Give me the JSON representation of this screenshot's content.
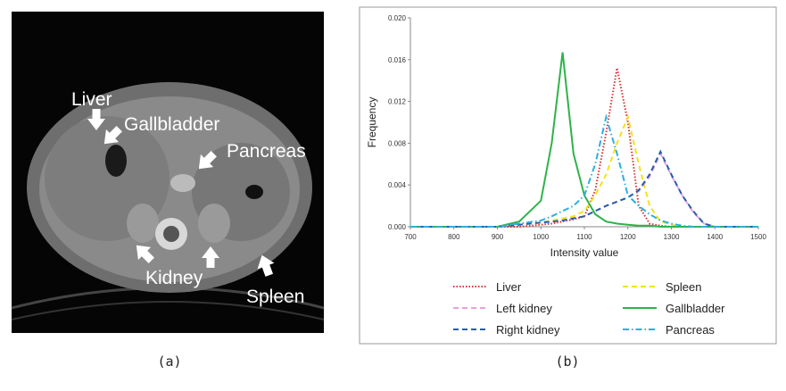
{
  "image": {
    "labels": [
      "Liver",
      "Gallbladder",
      "Pancreas",
      "Kidney",
      "Spleen"
    ]
  },
  "captions": [
    "(a)",
    "(b)"
  ],
  "chart_data": {
    "type": "line",
    "xlabel": "Intensity value",
    "ylabel": "Frequency",
    "x": [
      700,
      900,
      950,
      1000,
      1025,
      1050,
      1075,
      1100,
      1125,
      1150,
      1175,
      1200,
      1225,
      1250,
      1275,
      1300,
      1325,
      1350,
      1375,
      1400,
      1500
    ],
    "xlim": [
      700,
      1500
    ],
    "xticks": [
      700,
      800,
      900,
      1000,
      1100,
      1200,
      1300,
      1400,
      1500
    ],
    "ylim": [
      0,
      0.02
    ],
    "yticks": [
      {
        "value": 0,
        "label": "0.000"
      },
      {
        "value": 0.004,
        "label": "0.004"
      },
      {
        "value": 0.008,
        "label": "0.008"
      },
      {
        "value": 0.012,
        "label": "0.012"
      },
      {
        "value": 0.016,
        "label": "0.016"
      },
      {
        "value": 0.02,
        "label": "0.020"
      }
    ],
    "series": [
      {
        "name": "Liver",
        "color": "#d93030",
        "line_style": "dotted",
        "values": [
          0,
          0,
          0,
          0.0002,
          0.0003,
          0.0005,
          0.0007,
          0.001,
          0.0035,
          0.009,
          0.0152,
          0.01,
          0.002,
          0.0003,
          0.0001,
          0,
          0,
          0,
          0,
          0,
          0
        ]
      },
      {
        "name": "Spleen",
        "color": "#f2e21c",
        "line_style": "dashed",
        "values": [
          0,
          0,
          0.0002,
          0.0004,
          0.0006,
          0.0008,
          0.001,
          0.0015,
          0.003,
          0.005,
          0.008,
          0.0105,
          0.006,
          0.002,
          0.0005,
          0.0002,
          0,
          0,
          0,
          0,
          0
        ]
      },
      {
        "name": "Left kidney",
        "color": "#e8a0e0",
        "line_style": "dashed",
        "values": [
          0,
          0,
          0.0002,
          0.0004,
          0.0005,
          0.0006,
          0.0008,
          0.001,
          0.0015,
          0.002,
          0.0024,
          0.0028,
          0.0034,
          0.0048,
          0.007,
          0.0049,
          0.003,
          0.0014,
          0.0003,
          0,
          0
        ]
      },
      {
        "name": "Gallbladder",
        "color": "#2db34a",
        "line_style": "solid",
        "values": [
          0,
          0,
          0.0005,
          0.0025,
          0.008,
          0.0167,
          0.007,
          0.003,
          0.0012,
          0.0005,
          0.0003,
          0.0002,
          0.0001,
          0.0001,
          0,
          0,
          0,
          0,
          0,
          0,
          0
        ]
      },
      {
        "name": "Right kidney",
        "color": "#2a5caa",
        "line_style": "dashed",
        "values": [
          0,
          0,
          0.0002,
          0.0004,
          0.0005,
          0.0006,
          0.0008,
          0.001,
          0.0015,
          0.002,
          0.0024,
          0.0028,
          0.0035,
          0.005,
          0.0072,
          0.005,
          0.003,
          0.0015,
          0.0003,
          0,
          0
        ]
      },
      {
        "name": "Pancreas",
        "color": "#2ab0e0",
        "line_style": "dashdot",
        "values": [
          0,
          0,
          0.0003,
          0.0006,
          0.001,
          0.0015,
          0.002,
          0.003,
          0.006,
          0.0105,
          0.007,
          0.003,
          0.002,
          0.0012,
          0.0006,
          0.0003,
          0.0001,
          0,
          0,
          0,
          0
        ]
      }
    ]
  }
}
